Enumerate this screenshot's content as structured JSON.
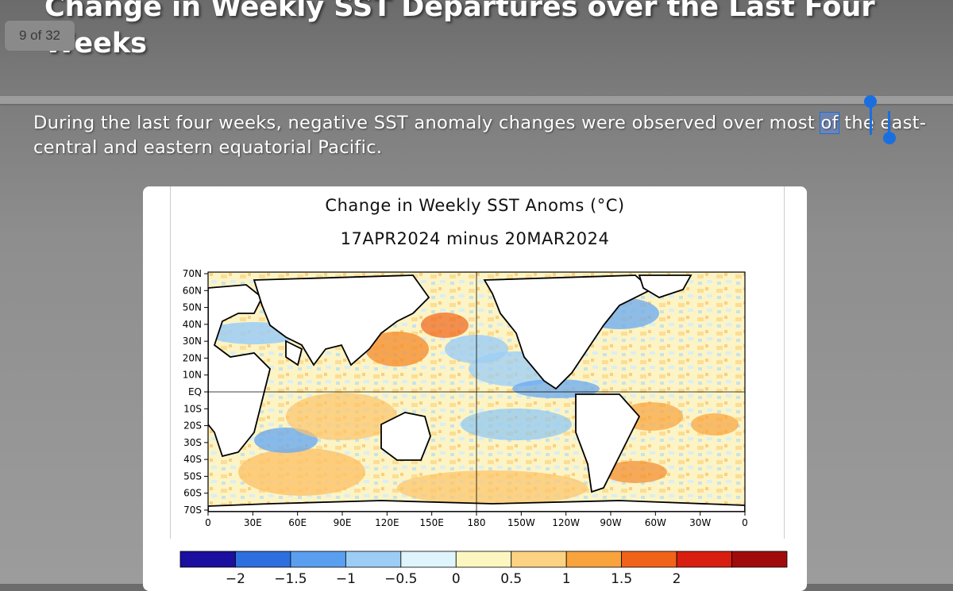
{
  "slide": {
    "title": "Change in Weekly SST Departures over the Last Four Weeks",
    "counter": "9 of 32",
    "body_before": "During the last four weeks, negative SST anomaly changes were observed over most ",
    "body_selected": "of",
    "body_after": " the east-central and eastern equatorial Pacific."
  },
  "figure": {
    "title": "Change in Weekly SST Anoms (°C)",
    "subtitle": "17APR2024 minus 20MAR2024",
    "lat_labels": [
      "70N",
      "60N",
      "50N",
      "40N",
      "30N",
      "20N",
      "10N",
      "EQ",
      "10S",
      "20S",
      "30S",
      "40S",
      "50S",
      "60S",
      "70S"
    ],
    "lon_labels": [
      "0",
      "30E",
      "60E",
      "90E",
      "120E",
      "150E",
      "180",
      "150W",
      "120W",
      "90W",
      "60W",
      "30W",
      "0"
    ],
    "colorbar": {
      "colors": [
        "#1a0f9e",
        "#2e6fe0",
        "#5a9ef0",
        "#9ccdf5",
        "#dff4fb",
        "#fcf6c0",
        "#fcd383",
        "#f9a33d",
        "#f06318",
        "#d81e10",
        "#a00c0c"
      ],
      "tick_labels": [
        "−2",
        "−1.5",
        "−1",
        "−0.5",
        "0",
        "0.5",
        "1",
        "1.5",
        "2"
      ]
    }
  }
}
